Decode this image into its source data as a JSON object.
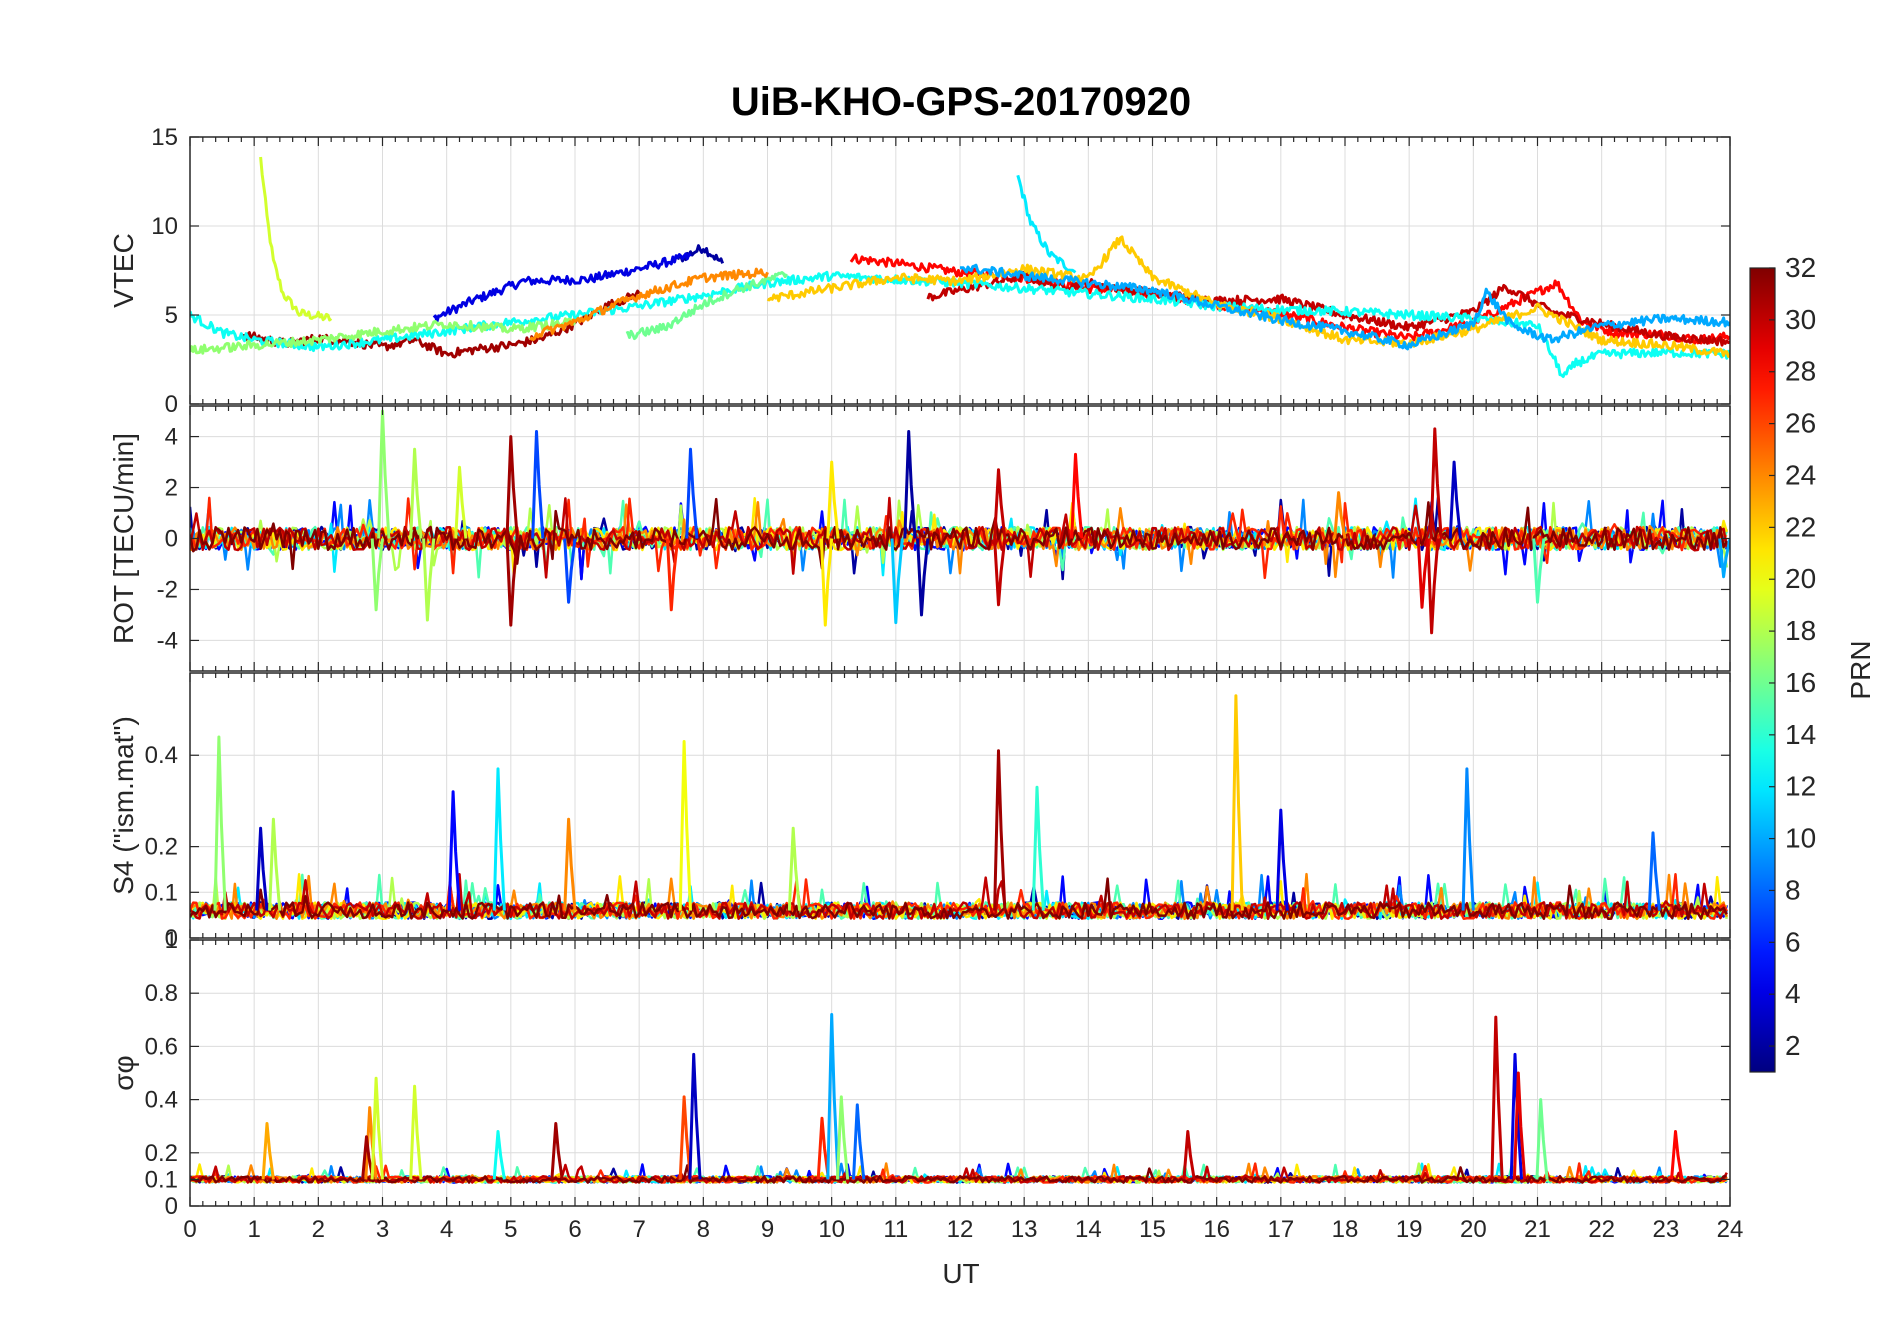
{
  "figure": {
    "title": "UiB-KHO-GPS-20170920",
    "xlabel": "UT"
  },
  "chart_data": {
    "type": "line",
    "title": "UiB-KHO-GPS-20170920",
    "xlabel": "UT",
    "x_ticks": [
      0,
      1,
      2,
      3,
      4,
      5,
      6,
      7,
      8,
      9,
      10,
      11,
      12,
      13,
      14,
      15,
      16,
      17,
      18,
      19,
      20,
      21,
      22,
      23,
      24
    ],
    "xlim": [
      0,
      24
    ],
    "grid": true,
    "panels": [
      {
        "ylabel": "VTEC",
        "ylim": [
          0,
          15
        ],
        "yticks": [
          0,
          5,
          10,
          15
        ],
        "series": [
          {
            "prn": 19,
            "points": [
              [
                1.1,
                13.8
              ],
              [
                1.2,
                10.5
              ],
              [
                1.3,
                8.0
              ],
              [
                1.45,
                6.2
              ],
              [
                1.7,
                5.1
              ],
              [
                2.2,
                4.8
              ]
            ]
          },
          {
            "prn": 2,
            "points": [
              [
                7.6,
                8.1
              ],
              [
                8.0,
                8.8
              ],
              [
                8.3,
                7.9
              ]
            ]
          },
          {
            "prn": 4,
            "points": [
              [
                3.8,
                4.8
              ],
              [
                4.4,
                5.8
              ],
              [
                5.2,
                6.9
              ],
              [
                6.2,
                7.0
              ],
              [
                7.0,
                7.6
              ],
              [
                7.8,
                8.3
              ]
            ]
          },
          {
            "prn": 12,
            "points": [
              [
                12.9,
                12.8
              ],
              [
                13.1,
                10.2
              ],
              [
                13.4,
                8.4
              ],
              [
                13.8,
                7.4
              ]
            ]
          },
          {
            "prn": 28,
            "points": [
              [
                10.3,
                8.2
              ],
              [
                11.0,
                7.9
              ],
              [
                12.0,
                7.4
              ],
              [
                13.0,
                7.1
              ],
              [
                14.0,
                6.5
              ],
              [
                15.0,
                6.2
              ],
              [
                16.0,
                5.6
              ],
              [
                17.0,
                5.1
              ],
              [
                18.0,
                4.3
              ],
              [
                19.0,
                3.7
              ],
              [
                20.0,
                4.6
              ],
              [
                21.0,
                6.3
              ],
              [
                21.3,
                6.8
              ],
              [
                21.7,
                4.6
              ],
              [
                22.2,
                4.0
              ],
              [
                23.0,
                3.9
              ],
              [
                23.5,
                3.6
              ],
              [
                24.0,
                3.8
              ]
            ]
          },
          {
            "prn": 31,
            "points": [
              [
                0.8,
                3.9
              ],
              [
                1.5,
                3.4
              ],
              [
                2.0,
                3.7
              ],
              [
                2.5,
                3.5
              ],
              [
                3.0,
                3.2
              ],
              [
                3.5,
                3.6
              ],
              [
                4.0,
                2.8
              ],
              [
                4.5,
                3.1
              ],
              [
                5.0,
                3.3
              ],
              [
                5.5,
                3.7
              ],
              [
                6.0,
                4.5
              ],
              [
                6.5,
                5.5
              ],
              [
                7.0,
                6.2
              ]
            ]
          },
          {
            "prn": 30,
            "points": [
              [
                11.5,
                6.0
              ],
              [
                12.5,
                6.8
              ],
              [
                13.0,
                7.2
              ],
              [
                13.5,
                6.6
              ],
              [
                14.0,
                6.8
              ],
              [
                15.0,
                6.2
              ],
              [
                16.0,
                5.8
              ],
              [
                17.0,
                5.9
              ],
              [
                18.0,
                5.0
              ],
              [
                19.0,
                4.3
              ],
              [
                20.0,
                5.2
              ],
              [
                20.5,
                6.6
              ],
              [
                21.2,
                5.2
              ],
              [
                22.0,
                4.5
              ],
              [
                23.0,
                3.8
              ],
              [
                24.0,
                3.5
              ]
            ]
          },
          {
            "prn": 13,
            "points": [
              [
                0.0,
                5.0
              ],
              [
                0.5,
                4.0
              ],
              [
                1.0,
                3.6
              ],
              [
                2.0,
                3.2
              ],
              [
                3.0,
                3.6
              ],
              [
                4.0,
                4.1
              ],
              [
                5.0,
                4.6
              ],
              [
                6.0,
                5.0
              ],
              [
                7.0,
                5.5
              ],
              [
                8.0,
                6.1
              ],
              [
                9.0,
                6.8
              ],
              [
                10.0,
                7.2
              ],
              [
                11.0,
                7.0
              ],
              [
                12.0,
                6.8
              ],
              [
                13.0,
                6.5
              ],
              [
                14.0,
                6.2
              ],
              [
                15.0,
                5.9
              ],
              [
                16.0,
                5.5
              ],
              [
                17.0,
                5.3
              ],
              [
                18.0,
                5.2
              ],
              [
                19.0,
                5.0
              ],
              [
                20.0,
                4.8
              ],
              [
                21.0,
                4.4
              ],
              [
                21.4,
                1.5
              ],
              [
                21.6,
                2.3
              ],
              [
                22.0,
                2.8
              ],
              [
                23.0,
                2.9
              ],
              [
                24.0,
                2.8
              ]
            ]
          },
          {
            "prn": 22,
            "points": [
              [
                9.0,
                5.9
              ],
              [
                10.0,
                6.5
              ],
              [
                11.0,
                7.1
              ],
              [
                12.0,
                6.9
              ],
              [
                13.0,
                7.6
              ],
              [
                14.0,
                7.0
              ],
              [
                14.5,
                9.3
              ],
              [
                15.0,
                7.1
              ],
              [
                16.0,
                5.6
              ],
              [
                17.0,
                4.8
              ],
              [
                18.0,
                3.6
              ],
              [
                19.0,
                3.4
              ],
              [
                20.0,
                4.2
              ],
              [
                21.0,
                5.4
              ],
              [
                22.0,
                3.6
              ],
              [
                23.0,
                3.3
              ],
              [
                24.0,
                2.8
              ]
            ]
          },
          {
            "prn": 16,
            "points": [
              [
                6.8,
                3.8
              ],
              [
                7.4,
                4.3
              ],
              [
                8.0,
                5.6
              ],
              [
                8.5,
                6.4
              ],
              [
                9.3,
                7.3
              ]
            ]
          },
          {
            "prn": 10,
            "points": [
              [
                12.0,
                7.7
              ],
              [
                13.0,
                7.2
              ],
              [
                14.0,
                6.8
              ],
              [
                15.0,
                6.4
              ],
              [
                16.0,
                5.5
              ],
              [
                17.0,
                4.7
              ],
              [
                18.0,
                4.1
              ],
              [
                19.0,
                3.3
              ],
              [
                20.0,
                4.5
              ],
              [
                20.2,
                6.3
              ],
              [
                20.6,
                4.4
              ],
              [
                21.2,
                3.6
              ],
              [
                22.0,
                4.4
              ],
              [
                23.0,
                4.8
              ],
              [
                24.0,
                4.6
              ]
            ]
          },
          {
            "prn": 17,
            "points": [
              [
                0.0,
                3.0
              ],
              [
                1.0,
                3.3
              ],
              [
                2.0,
                3.6
              ],
              [
                3.0,
                4.1
              ],
              [
                4.0,
                4.5
              ],
              [
                5.0,
                4.2
              ],
              [
                6.0,
                4.6
              ]
            ]
          },
          {
            "prn": 24,
            "points": [
              [
                5.3,
                3.8
              ],
              [
                6.0,
                4.6
              ],
              [
                6.5,
                5.4
              ],
              [
                7.0,
                6.1
              ],
              [
                7.5,
                6.6
              ],
              [
                8.0,
                7.1
              ],
              [
                9.0,
                7.4
              ]
            ]
          }
        ]
      },
      {
        "ylabel": "ROT [TECU/min]",
        "ylim": [
          -5.2,
          5.2
        ],
        "yticks": [
          -4,
          -2,
          0,
          2,
          4
        ],
        "spikes": [
          {
            "prn": 17,
            "x": 3.0,
            "value": 5.0
          },
          {
            "prn": 17,
            "x": 2.9,
            "value": -2.8
          },
          {
            "prn": 18,
            "x": 3.5,
            "value": 3.5
          },
          {
            "prn": 18,
            "x": 3.7,
            "value": -3.2
          },
          {
            "prn": 19,
            "x": 4.2,
            "value": 2.8
          },
          {
            "prn": 31,
            "x": 5.0,
            "value": 4.0
          },
          {
            "prn": 31,
            "x": 5.0,
            "value": -3.4
          },
          {
            "prn": 7,
            "x": 5.4,
            "value": 4.2
          },
          {
            "prn": 7,
            "x": 5.9,
            "value": -2.5
          },
          {
            "prn": 27,
            "x": 7.5,
            "value": -2.8
          },
          {
            "prn": 7,
            "x": 7.8,
            "value": 3.5
          },
          {
            "prn": 21,
            "x": 10.0,
            "value": 3.0
          },
          {
            "prn": 21,
            "x": 9.9,
            "value": -3.4
          },
          {
            "prn": 2,
            "x": 11.2,
            "value": 4.2
          },
          {
            "prn": 2,
            "x": 11.4,
            "value": -3.0
          },
          {
            "prn": 11,
            "x": 11.0,
            "value": -3.3
          },
          {
            "prn": 30,
            "x": 12.6,
            "value": 2.7
          },
          {
            "prn": 30,
            "x": 12.6,
            "value": -2.6
          },
          {
            "prn": 28,
            "x": 13.8,
            "value": 3.3
          },
          {
            "prn": 24,
            "x": 17.9,
            "value": 1.8
          },
          {
            "prn": 30,
            "x": 19.4,
            "value": 4.3
          },
          {
            "prn": 30,
            "x": 19.35,
            "value": -3.7
          },
          {
            "prn": 29,
            "x": 19.2,
            "value": -2.7
          },
          {
            "prn": 3,
            "x": 19.7,
            "value": 3.0
          },
          {
            "prn": 15,
            "x": 21.0,
            "value": -2.5
          },
          {
            "prn": 10,
            "x": 23.9,
            "value": -1.5
          }
        ]
      },
      {
        "ylabel": "S4 (\"ism.mat\")",
        "ylim": [
          0,
          0.58
        ],
        "yticks": [
          0,
          0.1,
          0.2,
          0.4
        ],
        "baseline": 0.06,
        "spikes": [
          {
            "prn": 17,
            "x": 0.45,
            "value": 0.44
          },
          {
            "prn": 3,
            "x": 1.1,
            "value": 0.24
          },
          {
            "prn": 18,
            "x": 1.3,
            "value": 0.26
          },
          {
            "prn": 5,
            "x": 4.1,
            "value": 0.32
          },
          {
            "prn": 12,
            "x": 4.8,
            "value": 0.37
          },
          {
            "prn": 24,
            "x": 5.9,
            "value": 0.26
          },
          {
            "prn": 20,
            "x": 7.7,
            "value": 0.43
          },
          {
            "prn": 18,
            "x": 9.4,
            "value": 0.24
          },
          {
            "prn": 31,
            "x": 12.6,
            "value": 0.41
          },
          {
            "prn": 14,
            "x": 13.2,
            "value": 0.33
          },
          {
            "prn": 22,
            "x": 16.3,
            "value": 0.53
          },
          {
            "prn": 4,
            "x": 17.0,
            "value": 0.28
          },
          {
            "prn": 9,
            "x": 19.9,
            "value": 0.37
          },
          {
            "prn": 8,
            "x": 22.8,
            "value": 0.23
          }
        ]
      },
      {
        "ylabel": "σφ",
        "ylim": [
          0,
          1
        ],
        "yticks": [
          0,
          0.1,
          0.2,
          0.4,
          0.6,
          0.8,
          1
        ],
        "baseline": 0.1,
        "spikes": [
          {
            "prn": 23,
            "x": 1.2,
            "value": 0.31
          },
          {
            "prn": 24,
            "x": 2.8,
            "value": 0.37
          },
          {
            "prn": 31,
            "x": 2.75,
            "value": 0.26
          },
          {
            "prn": 19,
            "x": 2.9,
            "value": 0.48
          },
          {
            "prn": 19,
            "x": 3.5,
            "value": 0.45
          },
          {
            "prn": 13,
            "x": 4.8,
            "value": 0.28
          },
          {
            "prn": 31,
            "x": 5.7,
            "value": 0.31
          },
          {
            "prn": 26,
            "x": 7.7,
            "value": 0.41
          },
          {
            "prn": 3,
            "x": 7.85,
            "value": 0.57
          },
          {
            "prn": 27,
            "x": 9.85,
            "value": 0.33
          },
          {
            "prn": 10,
            "x": 10.0,
            "value": 0.72
          },
          {
            "prn": 17,
            "x": 10.15,
            "value": 0.41
          },
          {
            "prn": 8,
            "x": 10.4,
            "value": 0.38
          },
          {
            "prn": 30,
            "x": 15.55,
            "value": 0.28
          },
          {
            "prn": 30,
            "x": 20.35,
            "value": 0.71
          },
          {
            "prn": 4,
            "x": 20.65,
            "value": 0.57
          },
          {
            "prn": 29,
            "x": 20.7,
            "value": 0.5
          },
          {
            "prn": 16,
            "x": 21.05,
            "value": 0.4
          },
          {
            "prn": 28,
            "x": 23.15,
            "value": 0.28
          }
        ]
      }
    ],
    "colorbar": {
      "label": "PRN",
      "colormap": "jet",
      "range": [
        1,
        32
      ],
      "ticks": [
        2,
        4,
        6,
        8,
        10,
        12,
        14,
        16,
        18,
        20,
        22,
        24,
        26,
        28,
        30,
        32
      ]
    }
  }
}
